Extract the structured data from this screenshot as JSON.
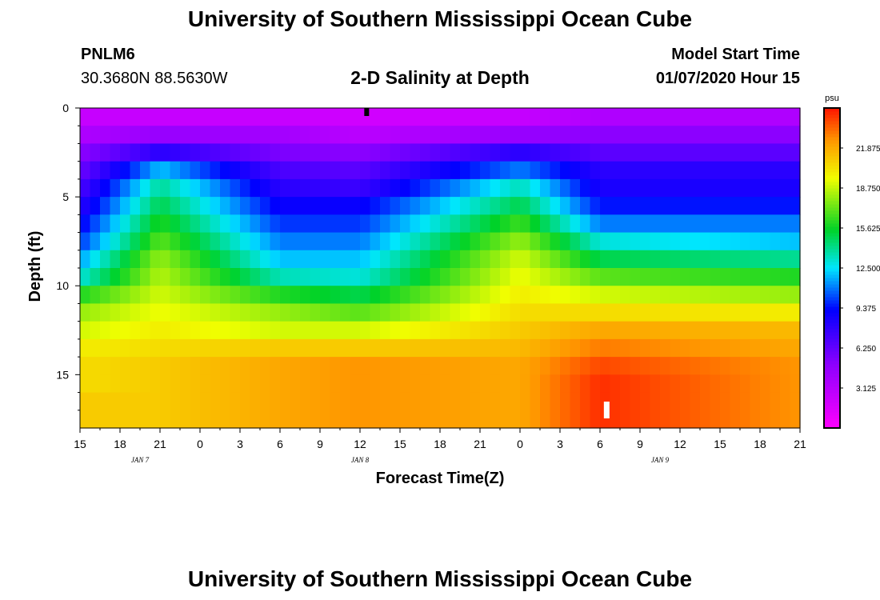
{
  "header": {
    "title": "University of Southern Mississippi Ocean Cube",
    "station_id": "PNLM6",
    "station_coords": "30.3680N 88.5630W",
    "chart_title": "2-D Salinity at Depth",
    "model_start_label": "Model Start Time",
    "model_start_value": "01/07/2020 Hour 15"
  },
  "footer": {
    "title": "University of Southern Mississippi Ocean Cube"
  },
  "chart_data": {
    "type": "heatmap",
    "title": "2-D Salinity at Depth",
    "xlabel": "Forecast Time(Z)",
    "ylabel": "Depth (ft)",
    "x_tick_labels": [
      "15",
      "18",
      "21",
      "0",
      "3",
      "6",
      "9",
      "12",
      "15",
      "18",
      "21",
      "0",
      "3",
      "6",
      "9",
      "12",
      "15",
      "18",
      "21"
    ],
    "x_hours_from_start": [
      0,
      3,
      6,
      9,
      12,
      15,
      18,
      21,
      24,
      27,
      30,
      33,
      36,
      39,
      42,
      45,
      48,
      51,
      54
    ],
    "date_labels": [
      {
        "label": "JAN 7",
        "hour": 4.5
      },
      {
        "label": "JAN 8",
        "hour": 21
      },
      {
        "label": "JAN 9",
        "hour": 43.5
      }
    ],
    "y_ticks": [
      0,
      5,
      10,
      15
    ],
    "ylim": [
      0,
      18
    ],
    "y_inverted": true,
    "colorbar": {
      "unit": "psu",
      "vmin": 0,
      "vmax": 25,
      "tick_values": [
        3.125,
        6.25,
        9.375,
        12.5,
        15.625,
        18.75,
        21.875
      ],
      "tick_labels": [
        "3.125",
        "6.250",
        "9.375",
        "12.500",
        "15.625",
        "18.750",
        "21.875"
      ]
    },
    "surface_marker_hour": 21.5,
    "bottom_marker_hour": 39.5,
    "depth_layers": 18,
    "series": [
      {
        "name": "Salinity (psu) by depth layer",
        "depth_ft": [
          0.5,
          1.5,
          2.5,
          3.5,
          4.5,
          5.5,
          6.5,
          7.5,
          8.5,
          9.5,
          10.5,
          11.5,
          12.5,
          13.5,
          14.5,
          15.5,
          16.5,
          17.5
        ],
        "hour": 0,
        "values": [
          2.5,
          3.5,
          5,
          6,
          7,
          8,
          9,
          10,
          11.5,
          13,
          16,
          18,
          19,
          20,
          20.5,
          20.5,
          21,
          21
        ]
      },
      {
        "name": "Salinity (psu) by depth layer",
        "hour": 6,
        "values": [
          2.5,
          4.5,
          8,
          12,
          14,
          15,
          16,
          17,
          18,
          18.5,
          19,
          19.5,
          20,
          20.5,
          21,
          21,
          21,
          21
        ]
      },
      {
        "name": "Salinity (psu) by depth layer",
        "hour": 15,
        "values": [
          2.5,
          4,
          5.5,
          7,
          8,
          9,
          10,
          11,
          12,
          13.5,
          16,
          18,
          19,
          21,
          22,
          22,
          22,
          22
        ]
      },
      {
        "name": "Salinity (psu) by depth layer",
        "hour": 21,
        "values": [
          2,
          3,
          5,
          6.5,
          7.5,
          9,
          10,
          11,
          12,
          13,
          15,
          17,
          19,
          21,
          22.5,
          22.5,
          22.5,
          22.5
        ]
      },
      {
        "name": "Salinity (psu) by depth layer",
        "hour": 33,
        "values": [
          2.5,
          4.5,
          8,
          11,
          13.5,
          15,
          16.5,
          18,
          19,
          19.5,
          20,
          20.5,
          21,
          21.5,
          22,
          22,
          22,
          22
        ]
      },
      {
        "name": "Salinity (psu) by depth layer",
        "hour": 39,
        "values": [
          3.5,
          5,
          6.5,
          8,
          8.5,
          9.5,
          11,
          13,
          15,
          17,
          19,
          20.5,
          22,
          23,
          24,
          24.5,
          24.5,
          24.5
        ]
      },
      {
        "name": "Salinity (psu) by depth layer",
        "hour": 54,
        "values": [
          3.5,
          5,
          6.5,
          8,
          8.5,
          9.5,
          11,
          12,
          14,
          16,
          18,
          20,
          21.5,
          22,
          22.5,
          22.5,
          22.5,
          22.5
        ]
      }
    ]
  }
}
